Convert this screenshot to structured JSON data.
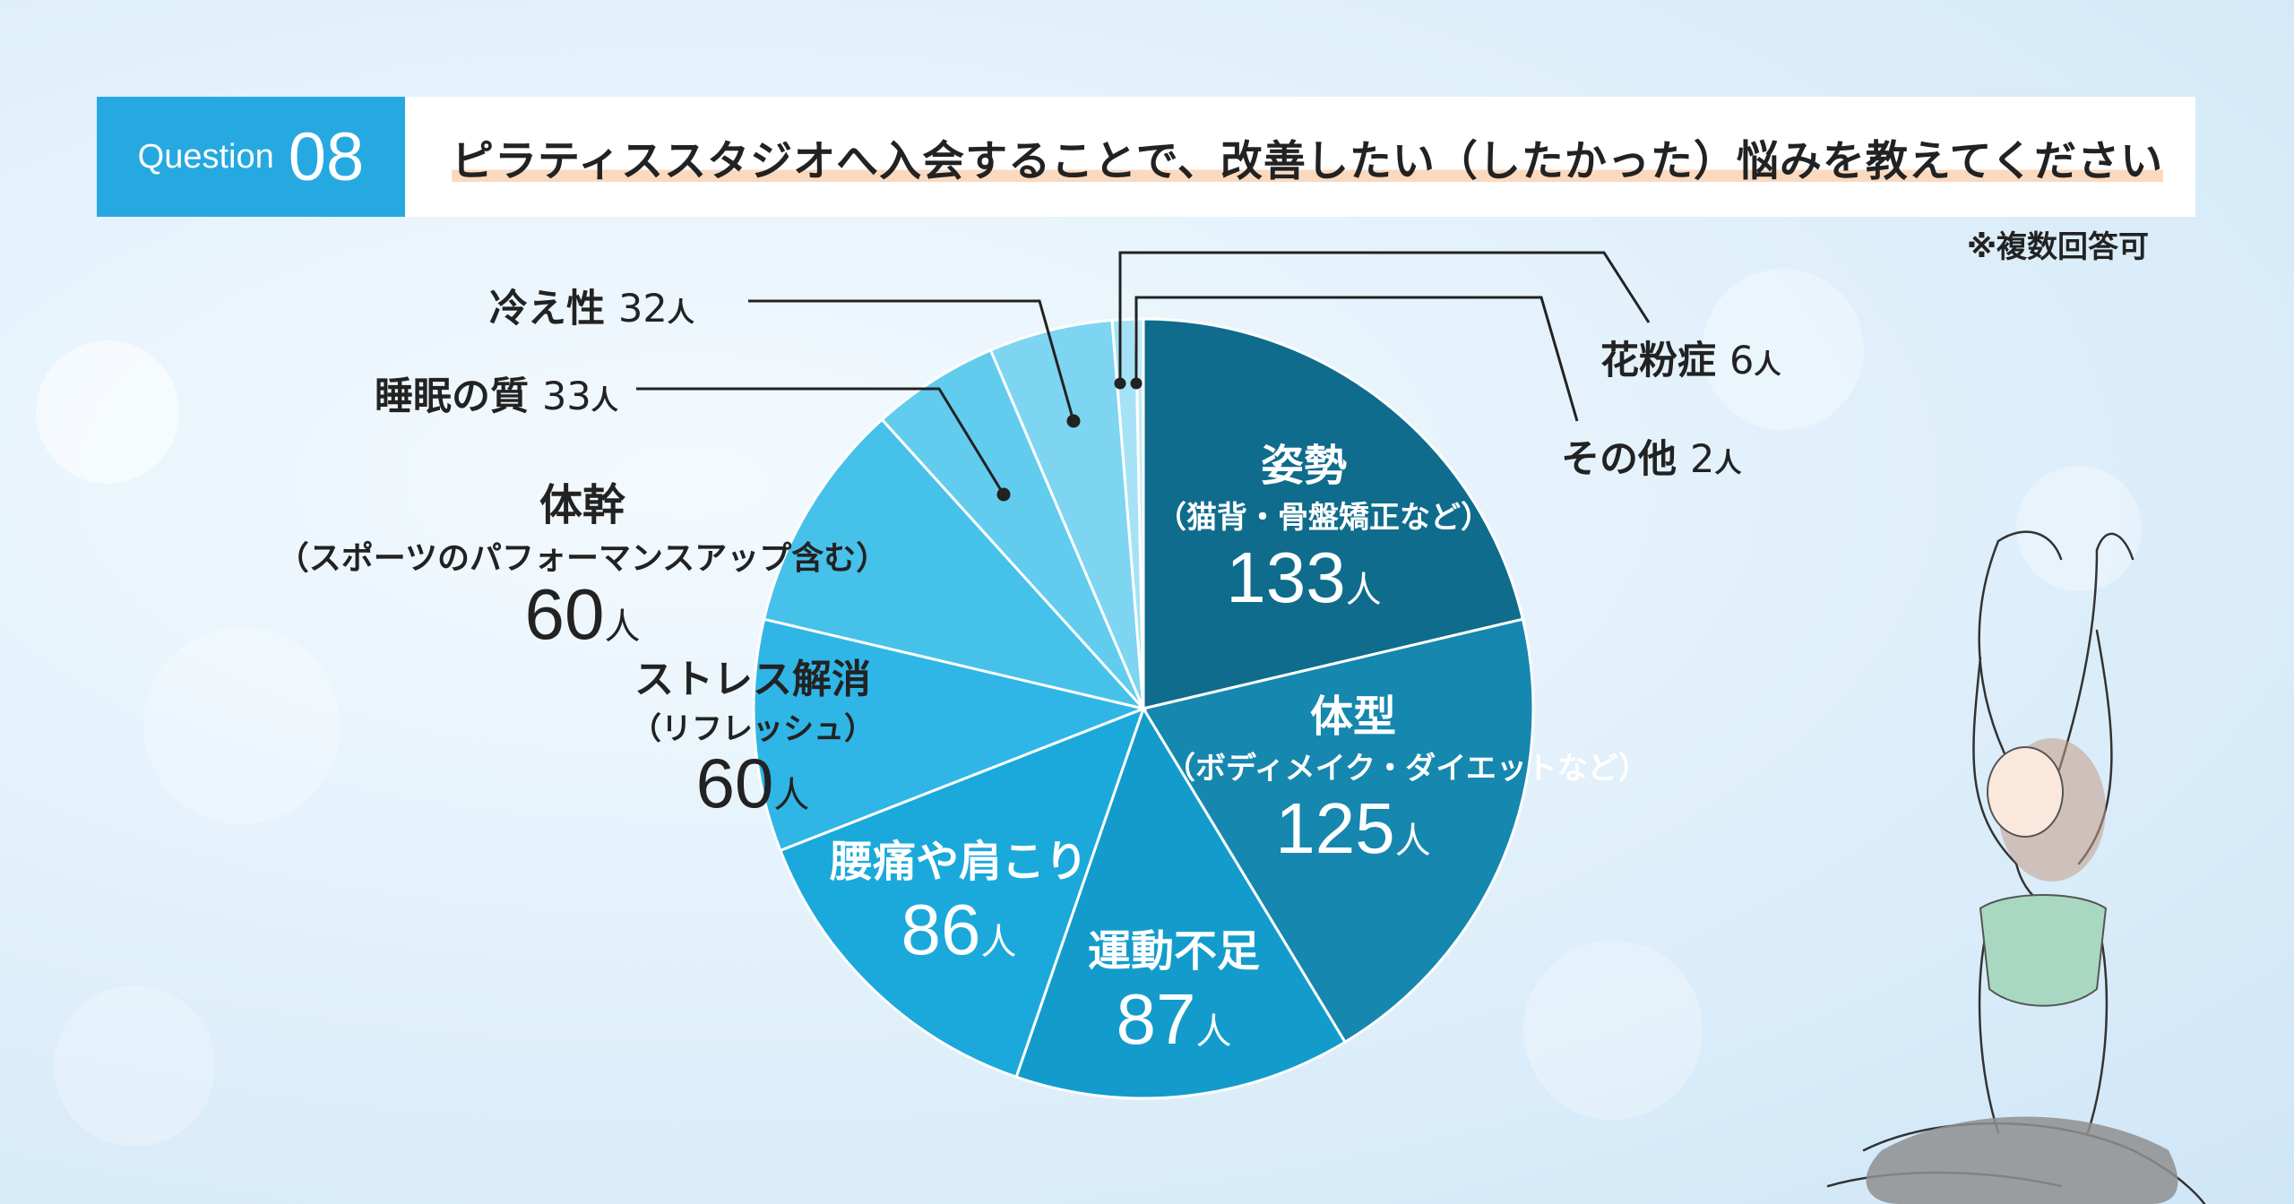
{
  "header": {
    "question_label": "Question",
    "question_number": "08",
    "question_text": "ピラティススタジオへ入会することで、改善したい（したかった）悩みを教えてください",
    "note": "※複数回答可"
  },
  "colors": {
    "header_blue": "#26a9e0",
    "highlight": "#fbd9bf"
  },
  "chart_data": {
    "type": "pie",
    "unit": "人",
    "slices": [
      {
        "name": "姿勢",
        "sub": "（猫背・骨盤矯正など）",
        "value": 133,
        "value_text": "133",
        "color": "#0f6c8c"
      },
      {
        "name": "体型",
        "sub": "（ボディメイク・ダイエットなど）",
        "value": 125,
        "value_text": "125",
        "color": "#1687ae"
      },
      {
        "name": "運動不足",
        "sub": "",
        "value": 87,
        "value_text": "87",
        "color": "#139ccb"
      },
      {
        "name": "腰痛や肩こり",
        "sub": "",
        "value": 86,
        "value_text": "86",
        "color": "#1ba9dc"
      },
      {
        "name": "ストレス解消",
        "sub": "（リフレッシュ）",
        "value": 60,
        "value_text": "60",
        "color": "#2fb6e6"
      },
      {
        "name": "体幹",
        "sub": "（スポーツのパフォーマンスアップ含む）",
        "value": 60,
        "value_text": "60",
        "color": "#46c1ea"
      },
      {
        "name": "睡眠の質",
        "sub": "",
        "value": 33,
        "value_text": "33",
        "color": "#62ccee"
      },
      {
        "name": "冷え性",
        "sub": "",
        "value": 32,
        "value_text": "32",
        "color": "#7dd5f1"
      },
      {
        "name": "花粉症",
        "sub": "",
        "value": 6,
        "value_text": "6",
        "color": "#a6e2f6"
      },
      {
        "name": "その他",
        "sub": "",
        "value": 2,
        "value_text": "2",
        "color": "#c2ebf8"
      }
    ]
  }
}
